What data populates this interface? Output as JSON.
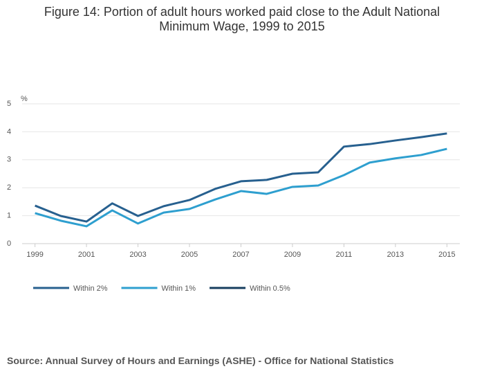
{
  "chart_data": {
    "type": "line",
    "title": "Figure 14: Portion of adult hours worked paid close to the Adult National Minimum Wage, 1999 to 2015",
    "y_label": "%",
    "source": "Source: Annual Survey of Hours and Earnings (ASHE) - Office for National Statistics",
    "x": [
      1999,
      2000,
      2001,
      2002,
      2003,
      2004,
      2005,
      2006,
      2007,
      2008,
      2009,
      2010,
      2011,
      2012,
      2013,
      2014,
      2015
    ],
    "series": [
      {
        "name": "Within 2%",
        "color": "#27608f",
        "values": [
          1.36,
          0.99,
          0.79,
          1.44,
          0.99,
          1.34,
          1.56,
          1.96,
          2.23,
          2.28,
          2.5,
          2.55,
          3.47,
          3.56,
          3.69,
          3.81,
          3.94
        ]
      },
      {
        "name": "Within 1%",
        "color": "#2e9fcf",
        "values": [
          1.09,
          0.82,
          0.62,
          1.19,
          0.72,
          1.11,
          1.24,
          1.58,
          1.88,
          1.78,
          2.03,
          2.08,
          2.45,
          2.9,
          3.05,
          3.17,
          3.39
        ]
      },
      {
        "name": "Within 0.5%",
        "color": "#163d5e",
        "values": [
          null,
          null,
          null,
          null,
          null,
          null,
          null,
          null,
          null,
          null,
          null,
          null,
          null,
          null,
          null,
          null,
          null
        ]
      }
    ],
    "xlim": [
      1998.5,
      2015.5
    ],
    "xticks": [
      1999,
      2001,
      2003,
      2005,
      2007,
      2009,
      2011,
      2013,
      2015
    ],
    "ylim": [
      0,
      5
    ],
    "yticks": [
      0,
      1,
      2,
      3,
      4,
      5
    ],
    "grid": true,
    "legend": "bottom-left"
  }
}
